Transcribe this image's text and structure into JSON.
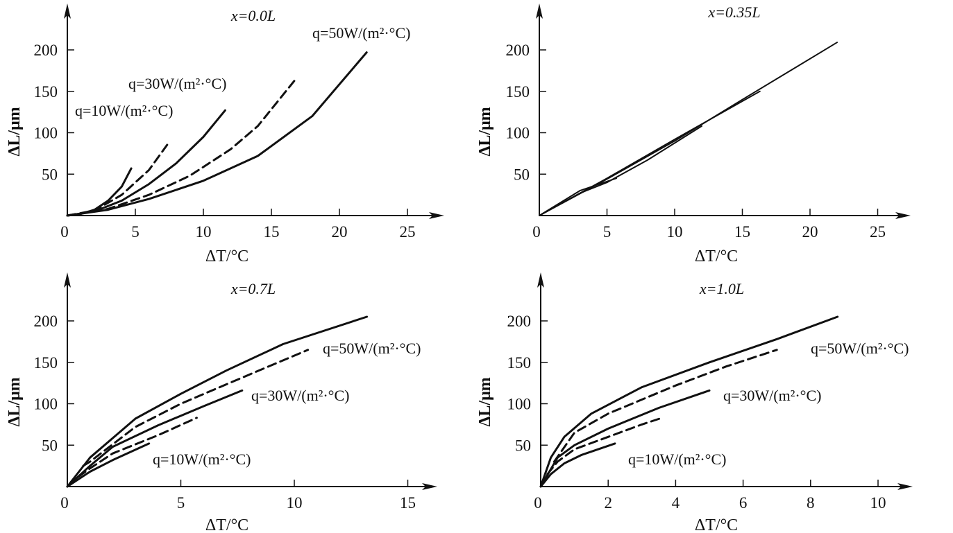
{
  "chart_data": [
    {
      "type": "line",
      "title": "x=0.0L",
      "xlabel": "ΔT/°C",
      "ylabel": "ΔL/μm",
      "xlim": [
        0,
        27
      ],
      "ylim": [
        0,
        240
      ],
      "xticks": [
        0,
        5,
        10,
        15,
        20,
        25
      ],
      "yticks": [
        50,
        100,
        150,
        200
      ],
      "grid": false,
      "annotations": [
        "q=50W/(m²·°C)",
        "q=30W/(m²·°C)",
        "q=10W/(m²·°C)"
      ],
      "series": [
        {
          "style": "solid",
          "points": [
            [
              0,
              0
            ],
            [
              1,
              2
            ],
            [
              2,
              7
            ],
            [
              3,
              18
            ],
            [
              4,
              35
            ],
            [
              4.7,
              57
            ]
          ]
        },
        {
          "style": "dashed",
          "points": [
            [
              0,
              0
            ],
            [
              2,
              6
            ],
            [
              4,
              25
            ],
            [
              6,
              55
            ],
            [
              7.5,
              89
            ]
          ]
        },
        {
          "style": "solid",
          "points": [
            [
              0,
              0
            ],
            [
              2,
              5
            ],
            [
              4,
              18
            ],
            [
              6,
              38
            ],
            [
              8,
              63
            ],
            [
              10,
              95
            ],
            [
              11.6,
              127
            ]
          ]
        },
        {
          "style": "dashed",
          "points": [
            [
              0,
              0
            ],
            [
              3,
              8
            ],
            [
              6,
              25
            ],
            [
              9,
              48
            ],
            [
              12,
              80
            ],
            [
              14,
              108
            ],
            [
              16.8,
              165
            ]
          ]
        },
        {
          "style": "solid",
          "points": [
            [
              0,
              0
            ],
            [
              3,
              7
            ],
            [
              6,
              20
            ],
            [
              10,
              42
            ],
            [
              14,
              72
            ],
            [
              18,
              120
            ],
            [
              22,
              197
            ]
          ]
        }
      ]
    },
    {
      "type": "line",
      "title": "x=0.35L",
      "xlabel": "ΔT/°C",
      "ylabel": "ΔL/μm",
      "xlim": [
        0,
        27
      ],
      "ylim": [
        0,
        240
      ],
      "xticks": [
        0,
        5,
        10,
        15,
        20,
        25
      ],
      "yticks": [
        50,
        100,
        150,
        200
      ],
      "grid": false,
      "annotations": [],
      "series": [
        {
          "style": "solid",
          "points": [
            [
              0,
              0
            ],
            [
              5,
              44
            ],
            [
              10,
              90
            ],
            [
              15,
              140
            ],
            [
              22,
              209
            ]
          ]
        },
        {
          "style": "solid",
          "points": [
            [
              0,
              0
            ],
            [
              5,
              45
            ],
            [
              10,
              92
            ],
            [
              16.3,
              150
            ]
          ]
        },
        {
          "style": "solid",
          "points": [
            [
              0,
              0
            ],
            [
              3,
              27
            ],
            [
              5,
              40
            ],
            [
              8,
              67
            ],
            [
              12,
              108
            ]
          ]
        },
        {
          "style": "solid",
          "points": [
            [
              0,
              0
            ],
            [
              3,
              30
            ],
            [
              5.7,
              45
            ]
          ]
        }
      ]
    },
    {
      "type": "line",
      "title": "x=0.7L",
      "xlabel": "ΔT/°C",
      "ylabel": "ΔL/μm",
      "xlim": [
        0,
        16.5
      ],
      "ylim": [
        0,
        240
      ],
      "xticks": [
        0,
        5,
        10,
        15
      ],
      "yticks": [
        50,
        100,
        150,
        200
      ],
      "grid": false,
      "annotations": [
        "q=50W/(m²·°C)",
        "q=30W/(m²·°C)",
        "q=10W/(m²·°C)"
      ],
      "series": [
        {
          "style": "solid",
          "points": [
            [
              0,
              0
            ],
            [
              1,
              35
            ],
            [
              3,
              82
            ],
            [
              5,
              112
            ],
            [
              7,
              140
            ],
            [
              9.5,
              172
            ],
            [
              13.2,
              205
            ]
          ]
        },
        {
          "style": "dashed",
          "points": [
            [
              0.7,
              25
            ],
            [
              1,
              30
            ],
            [
              3,
              72
            ],
            [
              5,
              100
            ],
            [
              8,
              135
            ],
            [
              10.6,
              165
            ]
          ]
        },
        {
          "style": "solid",
          "points": [
            [
              0,
              0
            ],
            [
              1,
              25
            ],
            [
              2,
              48
            ],
            [
              4,
              74
            ],
            [
              6,
              97
            ],
            [
              7.7,
              116
            ]
          ]
        },
        {
          "style": "dashed",
          "points": [
            [
              0.5,
              12
            ],
            [
              1,
              22
            ],
            [
              2,
              40
            ],
            [
              4,
              62
            ],
            [
              5.7,
              83
            ]
          ]
        },
        {
          "style": "solid",
          "points": [
            [
              0,
              0
            ],
            [
              1,
              18
            ],
            [
              2,
              32
            ],
            [
              3.6,
              52
            ]
          ]
        }
      ]
    },
    {
      "type": "line",
      "title": "x=1.0L",
      "xlabel": "ΔT/°C",
      "ylabel": "ΔL/μm",
      "xlim": [
        0,
        11
      ],
      "ylim": [
        0,
        240
      ],
      "xticks": [
        0,
        2,
        4,
        6,
        8,
        10
      ],
      "yticks": [
        50,
        100,
        150,
        200
      ],
      "grid": false,
      "annotations": [
        "q=50W/(m²·°C)",
        "q=30W/(m²·°C)",
        "q=10W/(m²·°C)"
      ],
      "series": [
        {
          "style": "solid",
          "points": [
            [
              0,
              0
            ],
            [
              0.3,
              35
            ],
            [
              0.7,
              60
            ],
            [
              1.5,
              88
            ],
            [
              3,
              120
            ],
            [
              5,
              150
            ],
            [
              7,
              178
            ],
            [
              8.8,
              205
            ]
          ]
        },
        {
          "style": "dashed",
          "points": [
            [
              0.4,
              30
            ],
            [
              1,
              65
            ],
            [
              2,
              88
            ],
            [
              4,
              122
            ],
            [
              5.5,
              145
            ],
            [
              7,
              165
            ]
          ]
        },
        {
          "style": "solid",
          "points": [
            [
              0,
              0
            ],
            [
              0.5,
              35
            ],
            [
              1,
              50
            ],
            [
              2,
              70
            ],
            [
              3.5,
              95
            ],
            [
              5,
              116
            ]
          ]
        },
        {
          "style": "dashed",
          "points": [
            [
              0.2,
              15
            ],
            [
              0.5,
              30
            ],
            [
              1,
              45
            ],
            [
              2,
              60
            ],
            [
              3,
              75
            ],
            [
              3.6,
              83
            ]
          ]
        },
        {
          "style": "solid",
          "points": [
            [
              0,
              0
            ],
            [
              0.3,
              15
            ],
            [
              0.7,
              28
            ],
            [
              1.2,
              38
            ],
            [
              2.2,
              52
            ]
          ]
        }
      ]
    }
  ]
}
